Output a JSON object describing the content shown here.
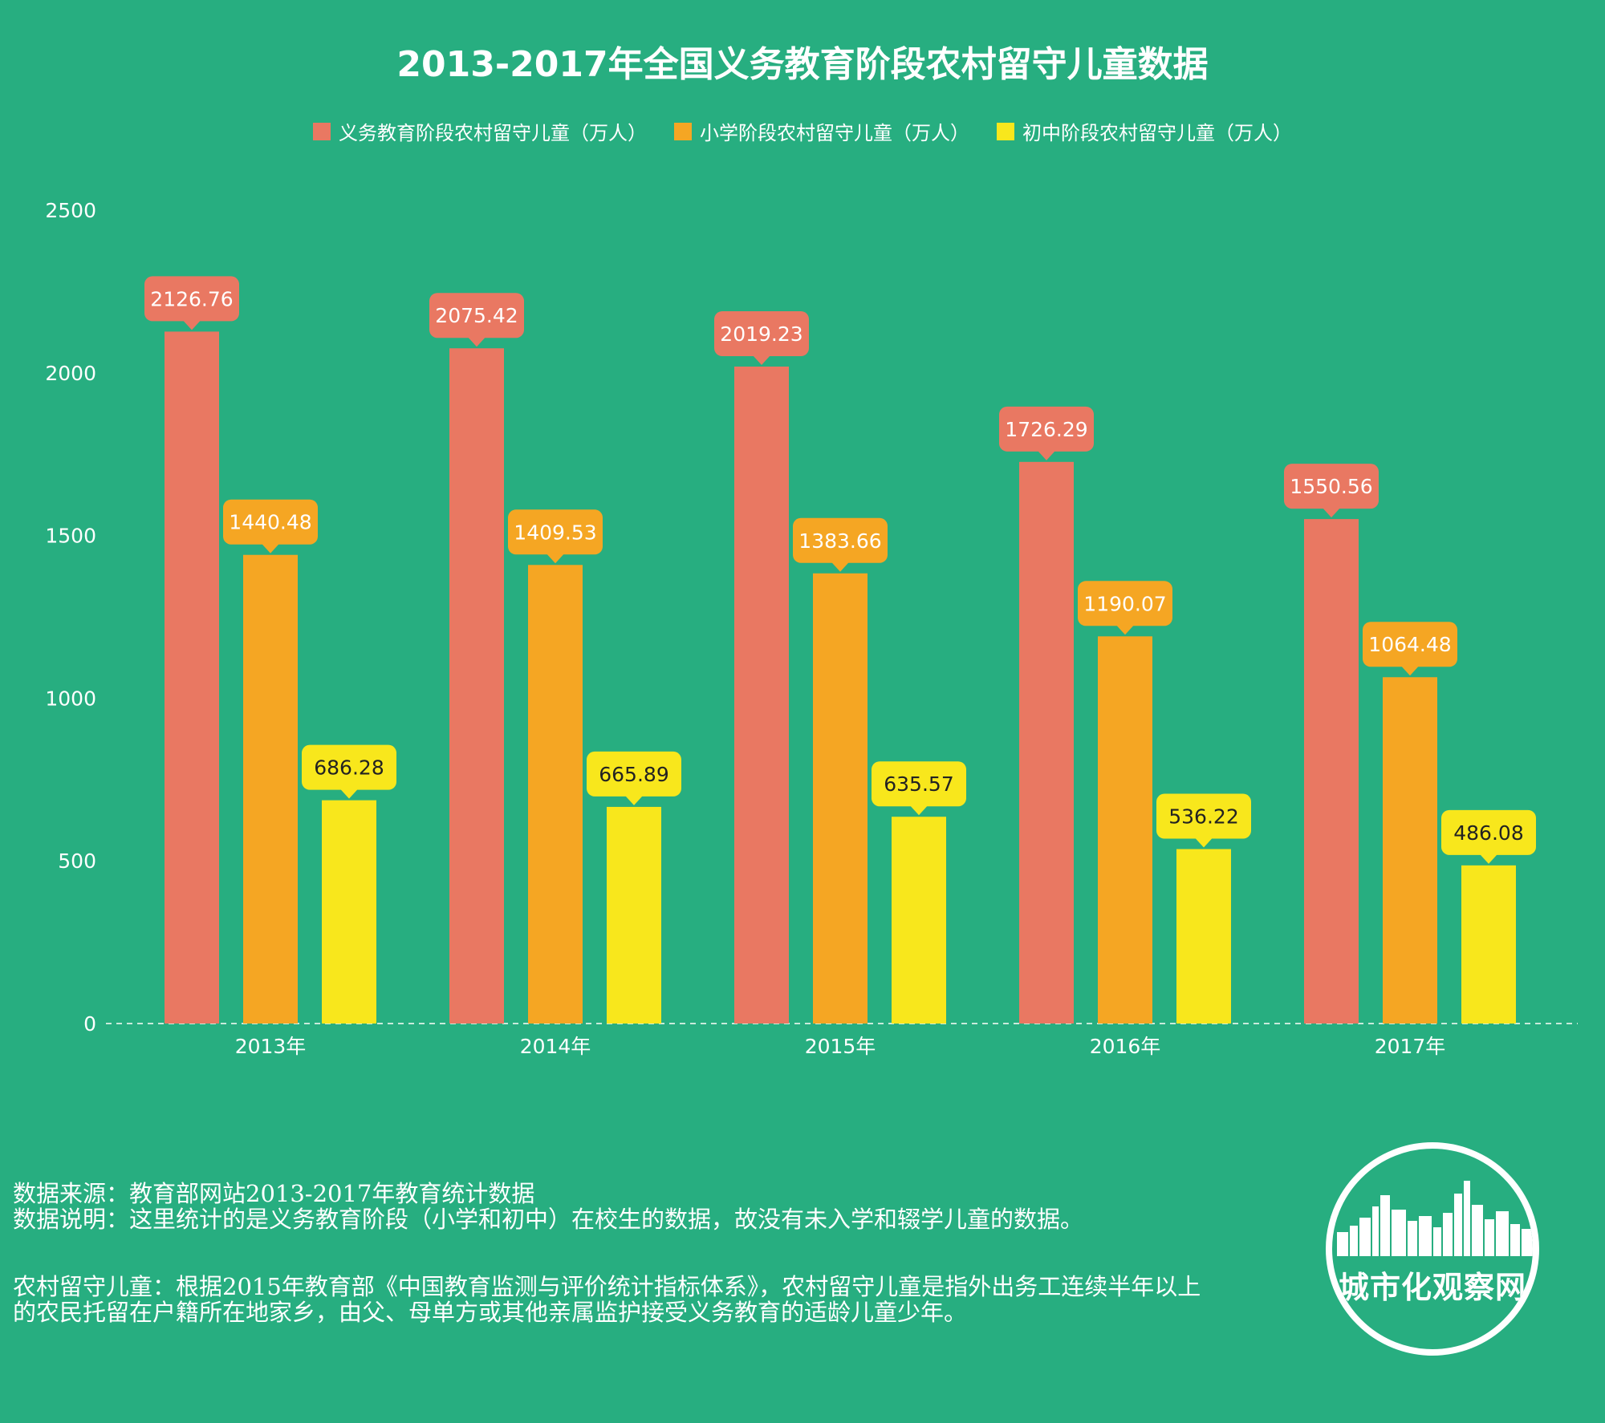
{
  "colors": {
    "background": "#27ae80",
    "compulsory": "#e97862",
    "primary": "#f5a623",
    "junior": "#f8e71c",
    "white": "#ffffff"
  },
  "legend": [
    {
      "label": "义务教育阶段农村留守儿童（万人）",
      "color": "#e97862"
    },
    {
      "label": "小学阶段农村留守儿童（万人）",
      "color": "#f5a623"
    },
    {
      "label": "初中阶段农村留守儿童（万人）",
      "color": "#f8e71c"
    }
  ],
  "chart_data": {
    "type": "bar",
    "title": "2013-2017年全国义务教育阶段农村留守儿童数据",
    "categories": [
      "2013年",
      "2014年",
      "2015年",
      "2016年",
      "2017年"
    ],
    "series": [
      {
        "name": "义务教育阶段农村留守儿童（万人）",
        "values": [
          2126.76,
          2075.42,
          2019.23,
          1726.29,
          1550.56
        ],
        "labels": [
          "2126.76",
          "2075.42",
          "2019.23",
          "1726.29",
          "1550.56"
        ],
        "color": "#e97862"
      },
      {
        "name": "小学阶段农村留守儿童（万人）",
        "values": [
          1440.48,
          1409.53,
          1383.66,
          1190.07,
          1064.48
        ],
        "labels": [
          "1440.48",
          "1409.53",
          "1383.66",
          "1190.07",
          "1064.48"
        ],
        "color": "#f5a623"
      },
      {
        "name": "初中阶段农村留守儿童（万人）",
        "values": [
          686.28,
          665.89,
          635.57,
          536.22,
          486.08
        ],
        "labels": [
          "686.28",
          "665.89",
          "635.57",
          "536.22",
          "486.08"
        ],
        "color": "#f8e71c"
      }
    ],
    "yticks": [
      "0",
      "500",
      "1000",
      "1500",
      "2000",
      "2500"
    ],
    "ylim": [
      0,
      2500
    ],
    "xlabel": "",
    "ylabel": "",
    "grid": false,
    "legend_position": "top"
  },
  "notes": {
    "source": "数据来源：教育部网站2013-2017年教育统计数据",
    "explanation": "数据说明：这里统计的是义务教育阶段（小学和初中）在校生的数据，故没有未入学和辍学儿童的数据。",
    "definition_line1": "农村留守儿童：根据2015年教育部《中国教育监测与评价统计指标体系》，农村留守儿童是指外出务工连续半年以上",
    "definition_line2": "的农民托留在户籍所在地家乡，由父、母单方或其他亲属监护接受义务教育的适龄儿童少年。"
  },
  "logo": {
    "text": "城市化观察网",
    "icon": "city-skyline-icon"
  }
}
